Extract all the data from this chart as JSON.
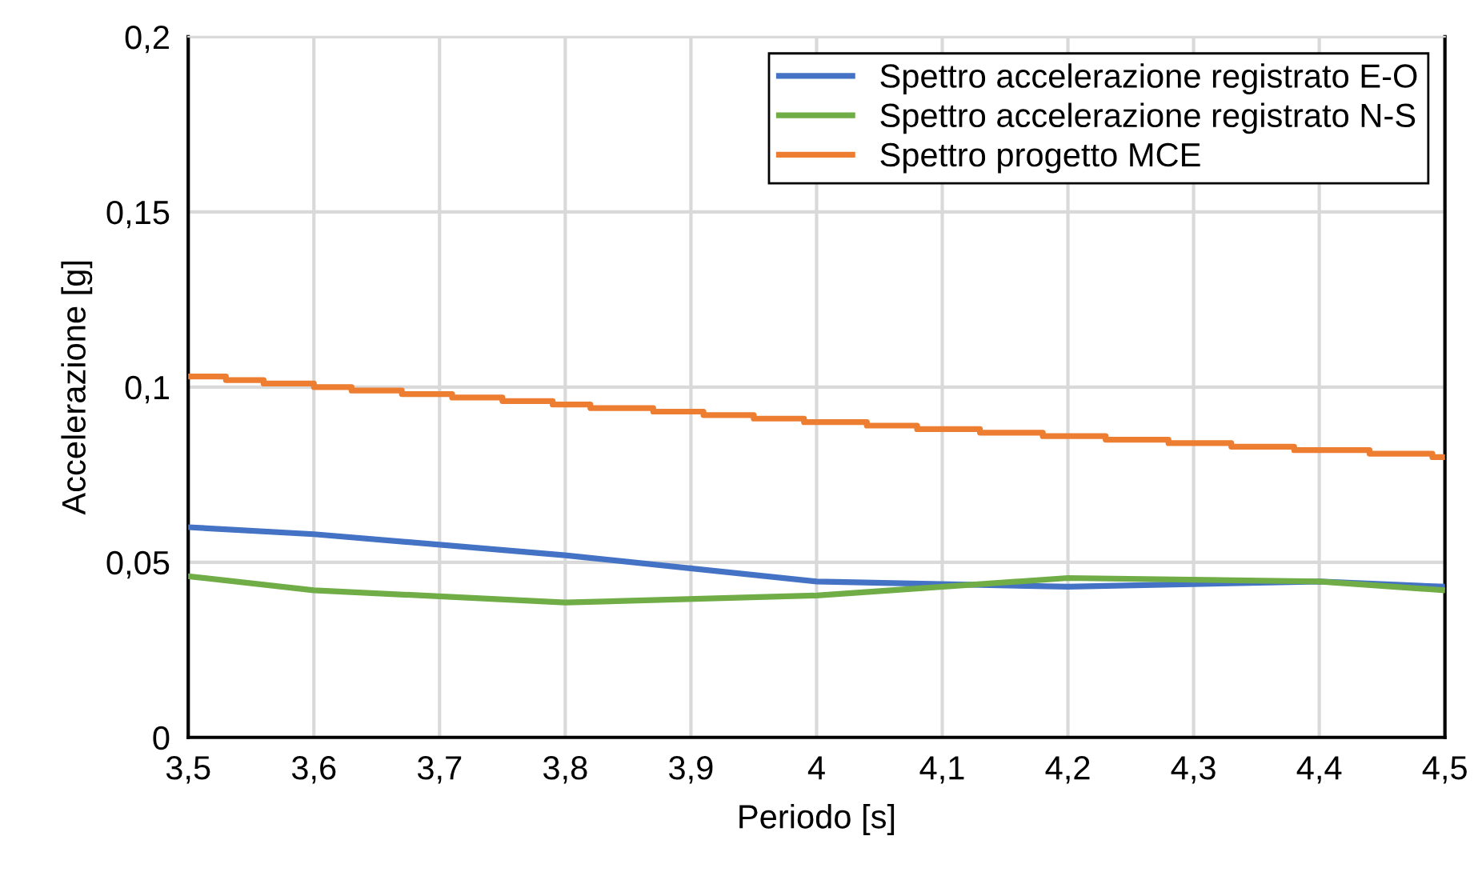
{
  "chart_data": {
    "type": "line",
    "xlabel": "Periodo [s]",
    "ylabel": "Accelerazione [g]",
    "xlim": [
      3.5,
      4.5
    ],
    "xticks": [
      {
        "value": 3.5,
        "label": "3,5"
      },
      {
        "value": 3.6,
        "label": "3,6"
      },
      {
        "value": 3.7,
        "label": "3,7"
      },
      {
        "value": 3.8,
        "label": "3,8"
      },
      {
        "value": 3.9,
        "label": "3,9"
      },
      {
        "value": 4,
        "label": "4"
      },
      {
        "value": 4.1,
        "label": "4,1"
      },
      {
        "value": 4.2,
        "label": "4,2"
      },
      {
        "value": 4.3,
        "label": "4,3"
      },
      {
        "value": 4.4,
        "label": "4,4"
      },
      {
        "value": 4.5,
        "label": "4,5"
      }
    ],
    "ylim": [
      0,
      0.2
    ],
    "yticks": [
      0,
      {
        "value": 0.05,
        "label": "0,05"
      },
      {
        "value": 0.1,
        "label": "0,1"
      },
      {
        "value": 0.15,
        "label": "0,15"
      },
      {
        "value": 0.2,
        "label": "0,2"
      }
    ],
    "grid": true,
    "legend": "top right",
    "marker": "none",
    "line_style": "solid",
    "series": [
      {
        "name": "Spettro accelerazione registrato E-O",
        "color": "#4472c4",
        "x": [
          3.5,
          3.6,
          3.8,
          4.0,
          4.2,
          4.4,
          4.5
        ],
        "values": [
          0.06,
          0.058,
          0.052,
          0.0445,
          0.043,
          0.0445,
          0.043
        ]
      },
      {
        "name": "Spettro accelerazione registrato N-S",
        "color": "#70ad47",
        "x": [
          3.5,
          3.6,
          3.8,
          4.0,
          4.2,
          4.4,
          4.5
        ],
        "values": [
          0.046,
          0.042,
          0.0385,
          0.0405,
          0.0455,
          0.0445,
          0.042
        ]
      },
      {
        "name": "Spettro progetto MCE",
        "color": "#ed7d31",
        "type": "step",
        "x": [
          3.5,
          3.53,
          3.56,
          3.6,
          3.63,
          3.67,
          3.71,
          3.75,
          3.79,
          3.82,
          3.87,
          3.91,
          3.95,
          3.99,
          4.04,
          4.08,
          4.13,
          4.18,
          4.23,
          4.28,
          4.33,
          4.38,
          4.44,
          4.49,
          4.5
        ],
        "values": [
          0.103,
          0.102,
          0.101,
          0.1,
          0.099,
          0.098,
          0.097,
          0.096,
          0.095,
          0.094,
          0.093,
          0.092,
          0.091,
          0.09,
          0.089,
          0.088,
          0.087,
          0.086,
          0.085,
          0.084,
          0.083,
          0.082,
          0.081,
          0.08,
          0.08
        ]
      }
    ]
  }
}
